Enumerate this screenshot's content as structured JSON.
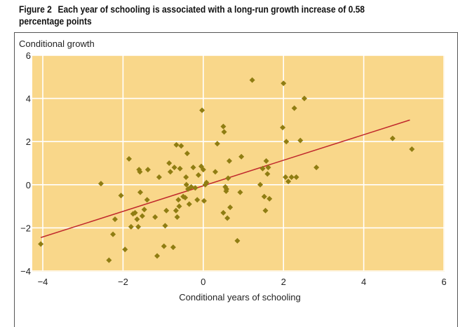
{
  "figure": {
    "number": "Figure 2",
    "title": "Each year of schooling is associated with a long-run growth increase of 0.58 percentage points"
  },
  "colors": {
    "plot_bg": "#f9d78a",
    "grid": "#ffffff",
    "points": "#8f7d12",
    "trend": "#c0282c"
  },
  "chart_data": {
    "type": "scatter",
    "xlabel": "Conditional years of schooling",
    "ylabel": "Conditional growth",
    "xlim": [
      -4,
      6
    ],
    "ylim": [
      -4,
      6
    ],
    "xticks": [
      -4,
      -2,
      0,
      2,
      4,
      6
    ],
    "yticks": [
      -4,
      -2,
      0,
      2,
      4,
      6
    ],
    "x_tick_labels": [
      "−4",
      "−2",
      "0",
      "2",
      "4",
      "6"
    ],
    "y_tick_labels": [
      "−4",
      "−2",
      "0",
      "2",
      "4",
      "6"
    ],
    "grid": true,
    "trendline": {
      "x": [
        -4.05,
        5.15
      ],
      "y": [
        -2.45,
        3.0
      ]
    },
    "points": [
      [
        -4.05,
        -2.75
      ],
      [
        -2.55,
        0.05
      ],
      [
        -2.35,
        -3.5
      ],
      [
        -2.25,
        -2.3
      ],
      [
        -2.2,
        -1.6
      ],
      [
        -2.05,
        -0.5
      ],
      [
        -1.95,
        -3.0
      ],
      [
        -1.85,
        1.2
      ],
      [
        -1.8,
        -1.95
      ],
      [
        -1.75,
        -1.35
      ],
      [
        -1.7,
        -1.3
      ],
      [
        -1.65,
        -1.6
      ],
      [
        -1.62,
        -1.95
      ],
      [
        -1.6,
        0.7
      ],
      [
        -1.58,
        0.6
      ],
      [
        -1.57,
        -0.35
      ],
      [
        -1.52,
        -1.45
      ],
      [
        -1.47,
        -1.15
      ],
      [
        -1.4,
        -0.7
      ],
      [
        -1.38,
        0.7
      ],
      [
        -1.2,
        -1.5
      ],
      [
        -1.15,
        -3.3
      ],
      [
        -1.1,
        0.35
      ],
      [
        -0.98,
        -2.85
      ],
      [
        -0.95,
        -1.9
      ],
      [
        -0.92,
        -1.2
      ],
      [
        -0.85,
        1.0
      ],
      [
        -0.82,
        0.6
      ],
      [
        -0.75,
        -2.9
      ],
      [
        -0.72,
        0.8
      ],
      [
        -0.68,
        -1.2
      ],
      [
        -0.67,
        1.85
      ],
      [
        -0.65,
        -1.5
      ],
      [
        -0.62,
        -0.7
      ],
      [
        -0.6,
        -1.0
      ],
      [
        -0.58,
        0.75
      ],
      [
        -0.55,
        1.8
      ],
      [
        -0.5,
        -0.55
      ],
      [
        -0.45,
        -0.6
      ],
      [
        -0.43,
        0.35
      ],
      [
        -0.42,
        0.0
      ],
      [
        -0.4,
        1.45
      ],
      [
        -0.38,
        -0.2
      ],
      [
        -0.35,
        -0.9
      ],
      [
        -0.3,
        -0.1
      ],
      [
        -0.25,
        0.8
      ],
      [
        -0.2,
        -0.15
      ],
      [
        -0.15,
        -0.7
      ],
      [
        -0.12,
        0.45
      ],
      [
        -0.05,
        0.85
      ],
      [
        -0.03,
        3.45
      ],
      [
        0.0,
        0.7
      ],
      [
        0.02,
        -0.75
      ],
      [
        0.05,
        0.0
      ],
      [
        0.08,
        0.1
      ],
      [
        0.3,
        0.6
      ],
      [
        0.35,
        1.9
      ],
      [
        0.5,
        2.7
      ],
      [
        0.5,
        -1.3
      ],
      [
        0.52,
        2.45
      ],
      [
        0.55,
        -0.1
      ],
      [
        0.57,
        -0.3
      ],
      [
        0.58,
        -0.2
      ],
      [
        0.6,
        -1.55
      ],
      [
        0.62,
        0.3
      ],
      [
        0.65,
        1.1
      ],
      [
        0.67,
        -1.05
      ],
      [
        0.85,
        -2.6
      ],
      [
        0.92,
        -0.35
      ],
      [
        0.95,
        1.3
      ],
      [
        1.22,
        4.85
      ],
      [
        1.42,
        0.0
      ],
      [
        1.48,
        0.75
      ],
      [
        1.52,
        -0.55
      ],
      [
        1.55,
        -1.2
      ],
      [
        1.57,
        1.1
      ],
      [
        1.6,
        0.5
      ],
      [
        1.62,
        0.8
      ],
      [
        1.65,
        -0.65
      ],
      [
        1.98,
        2.65
      ],
      [
        2.0,
        4.7
      ],
      [
        2.05,
        0.35
      ],
      [
        2.07,
        2.0
      ],
      [
        2.12,
        0.15
      ],
      [
        2.2,
        0.35
      ],
      [
        2.27,
        3.55
      ],
      [
        2.32,
        0.35
      ],
      [
        2.42,
        2.05
      ],
      [
        2.52,
        4.0
      ],
      [
        2.82,
        0.8
      ],
      [
        4.72,
        2.15
      ],
      [
        5.2,
        1.65
      ]
    ]
  }
}
